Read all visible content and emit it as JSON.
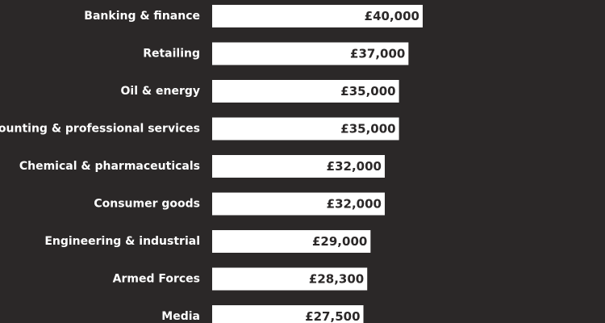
{
  "chart_data": {
    "type": "bar",
    "orientation": "horizontal",
    "title": "",
    "xlabel": "",
    "ylabel": "",
    "xlim": [
      0,
      40000
    ],
    "grid": false,
    "legend": "none",
    "colors": {
      "background": "#2b2828",
      "bar": "#ffffff",
      "category_text": "#ffffff",
      "value_text": "#2b2828"
    },
    "categories": [
      "Banking & finance",
      "Retailing",
      "Oil & energy",
      "Accounting & professional services",
      "Chemical & pharmaceuticals",
      "Consumer goods",
      "Engineering & industrial",
      "Armed Forces",
      "Media"
    ],
    "values": [
      40000,
      37000,
      35000,
      35000,
      32000,
      32000,
      29000,
      28300,
      27500
    ],
    "value_labels": [
      "£40,000",
      "£37,000",
      "£35,000",
      "£35,000",
      "£32,000",
      "£32,000",
      "£29,000",
      "£28,300",
      "£27,500"
    ]
  }
}
